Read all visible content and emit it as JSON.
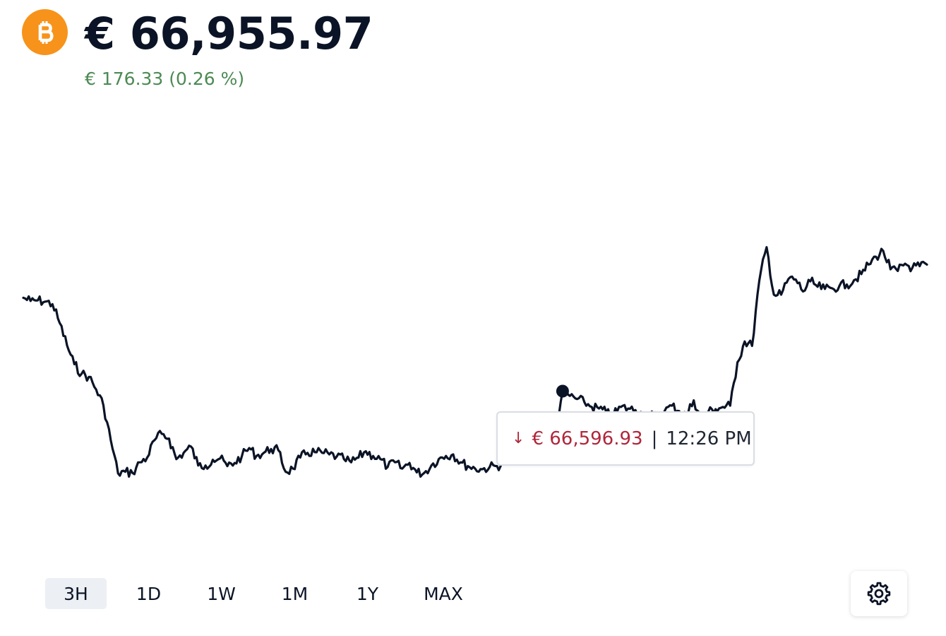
{
  "header": {
    "price": "€ 66,955.97",
    "change": "€ 176.33 (0.26 %)",
    "coin_icon": "bitcoin-icon"
  },
  "colors": {
    "brand": "#F7931A",
    "line": "#0b1426",
    "positive": "#4c8a54",
    "negative": "#b0263b",
    "tab_active_bg": "#eceff3"
  },
  "tooltip": {
    "direction_icon": "arrow-down-icon",
    "arrow": "↓",
    "price": "€ 66,596.93",
    "separator": "|",
    "time": "12:26 PM"
  },
  "ranges": {
    "selected": "3H",
    "options": [
      "3H",
      "1D",
      "1W",
      "1M",
      "1Y",
      "MAX"
    ]
  },
  "settings": {
    "icon": "gear-icon"
  },
  "chart_data": {
    "type": "line",
    "grid": false,
    "legend": "none",
    "highlight_index": 74,
    "y_range": [
      66250,
      67300
    ],
    "series": [
      {
        "values": [
          66850,
          66840,
          66842,
          66838,
          66830,
          66770,
          66700,
          66640,
          66610,
          66600,
          66560,
          66510,
          66400,
          66295,
          66300,
          66296,
          66330,
          66345,
          66400,
          66420,
          66405,
          66340,
          66360,
          66380,
          66320,
          66320,
          66338,
          66342,
          66318,
          66328,
          66350,
          66375,
          66350,
          66360,
          66372,
          66368,
          66300,
          66310,
          66345,
          66360,
          66362,
          66360,
          66355,
          66348,
          66340,
          66330,
          66345,
          66365,
          66350,
          66340,
          66315,
          66330,
          66310,
          66328,
          66298,
          66296,
          66320,
          66340,
          66350,
          66355,
          66330,
          66318,
          66310,
          66308,
          66315,
          66318,
          66328,
          66345,
          66342,
          66380,
          66405,
          66418,
          66425,
          66430,
          66555,
          66540,
          66530,
          66520,
          66505,
          66500,
          66488,
          66480,
          66505,
          66500,
          66495,
          66482,
          66478,
          66476,
          66492,
          66509,
          66492,
          66478,
          66526,
          66468,
          66490,
          66498,
          66505,
          66509,
          66646,
          66712,
          66698,
          66905,
          67010,
          66860,
          66860,
          66910,
          66908,
          66870,
          66902,
          66885,
          66878,
          66880,
          66888,
          66892,
          66906,
          66925,
          66955,
          66980,
          66998,
          66940,
          66935,
          66958,
          66945,
          66950,
          66955
        ]
      }
    ]
  }
}
